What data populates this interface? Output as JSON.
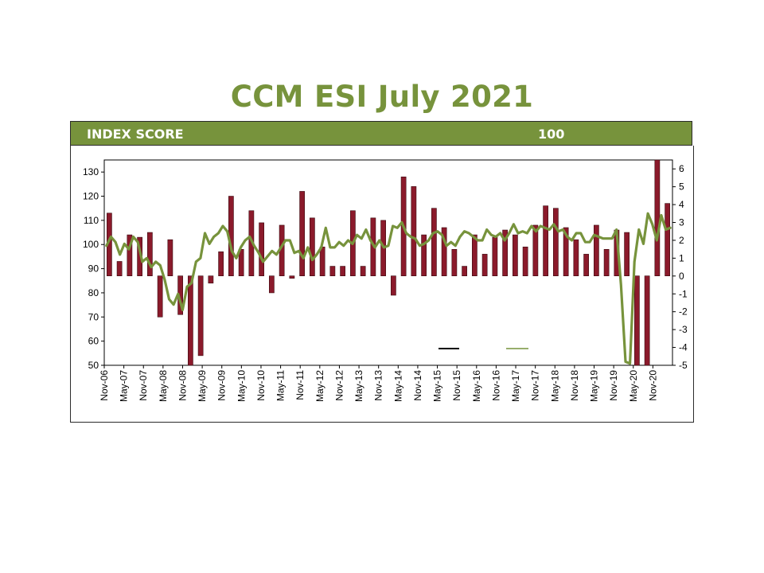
{
  "page": {
    "title": "CCM ESI July 2021",
    "band_label": "INDEX SCORE",
    "band_value": "100"
  },
  "colors": {
    "title": "#77933c",
    "band": "#77933c",
    "bars": "#8b1a2b",
    "line": "#77933c"
  },
  "chart_data": {
    "type": "bar+line",
    "title": "",
    "xlabel": "",
    "ylabel": "",
    "grid": false,
    "legend": "inside-bottom-right (entries unreadable)",
    "y_left": {
      "range": [
        50,
        135
      ],
      "ticks": [
        50,
        60,
        70,
        80,
        90,
        100,
        110,
        120,
        130
      ],
      "bar_baseline": 87
    },
    "y_right": {
      "range": [
        -5,
        6.5
      ],
      "ticks": [
        -5,
        -4,
        -3,
        -2,
        -1,
        0,
        1,
        2,
        3,
        4,
        5,
        6
      ]
    },
    "x_tick_labels": [
      "Nov-06",
      "May-07",
      "Nov-07",
      "May-08",
      "Nov-08",
      "May-09",
      "Nov-09",
      "May-10",
      "Nov-10",
      "May-11",
      "Nov-11",
      "May-12",
      "Nov-12",
      "May-13",
      "Nov-13",
      "May-14",
      "Nov-14",
      "May-15",
      "Nov-15",
      "May-16",
      "Nov-16",
      "May-17",
      "Nov-17",
      "May-18",
      "Nov-18",
      "May-19",
      "Nov-19",
      "May-20",
      "Nov-20"
    ],
    "bar_series": {
      "axis": "left",
      "values": [
        113,
        93,
        104,
        103,
        105,
        70,
        102,
        71,
        50,
        54,
        84,
        97,
        120,
        98,
        114,
        109,
        80,
        108,
        86,
        122,
        111,
        99,
        91,
        91,
        114,
        91,
        111,
        110,
        79,
        128,
        124,
        104,
        115,
        107,
        98,
        91,
        104,
        96,
        103,
        106,
        104,
        99,
        108,
        116,
        115,
        107,
        102,
        96,
        108,
        98,
        106,
        105,
        50,
        50,
        135,
        117
      ]
    },
    "line_series": {
      "axis": "right",
      "values": [
        1.7,
        2.2,
        1.9,
        1.2,
        1.8,
        1.5,
        2.2,
        1.9,
        0.8,
        1.0,
        0.5,
        0.8,
        0.6,
        -0.2,
        -1.3,
        -1.6,
        -1.0,
        -1.9,
        -0.6,
        -0.4,
        0.8,
        1.0,
        2.4,
        1.8,
        2.2,
        2.4,
        2.8,
        2.5,
        1.4,
        1.0,
        1.6,
        2.0,
        2.2,
        1.7,
        1.3,
        0.8,
        1.1,
        1.4,
        1.2,
        1.6,
        2.0,
        2.0,
        1.3,
        1.4,
        1.0,
        1.6,
        0.9,
        1.2,
        1.6,
        2.7,
        1.6,
        1.6,
        1.9,
        1.7,
        2.0,
        1.8,
        2.3,
        2.1,
        2.6,
        2.0,
        1.6,
        2.0,
        1.6,
        1.7,
        2.8,
        2.7,
        3.0,
        2.4,
        2.2,
        2.1,
        1.7,
        1.8,
        2.0,
        2.4,
        2.5,
        2.3,
        1.7,
        1.9,
        1.7,
        2.2,
        2.5,
        2.4,
        2.2,
        2.0,
        2.0,
        2.6,
        2.3,
        2.2,
        2.4,
        2.0,
        2.4,
        2.9,
        2.4,
        2.5,
        2.4,
        2.8,
        2.5,
        2.8,
        2.7,
        2.6,
        2.9,
        2.5,
        2.6,
        2.2,
        2.0,
        2.4,
        2.4,
        1.9,
        1.9,
        2.3,
        2.2,
        2.1,
        2.1,
        2.1,
        2.6,
        -0.5,
        -4.8,
        -4.9,
        0.8,
        2.6,
        1.8,
        3.5,
        2.9,
        2.0,
        3.4,
        2.6,
        2.7
      ]
    }
  }
}
